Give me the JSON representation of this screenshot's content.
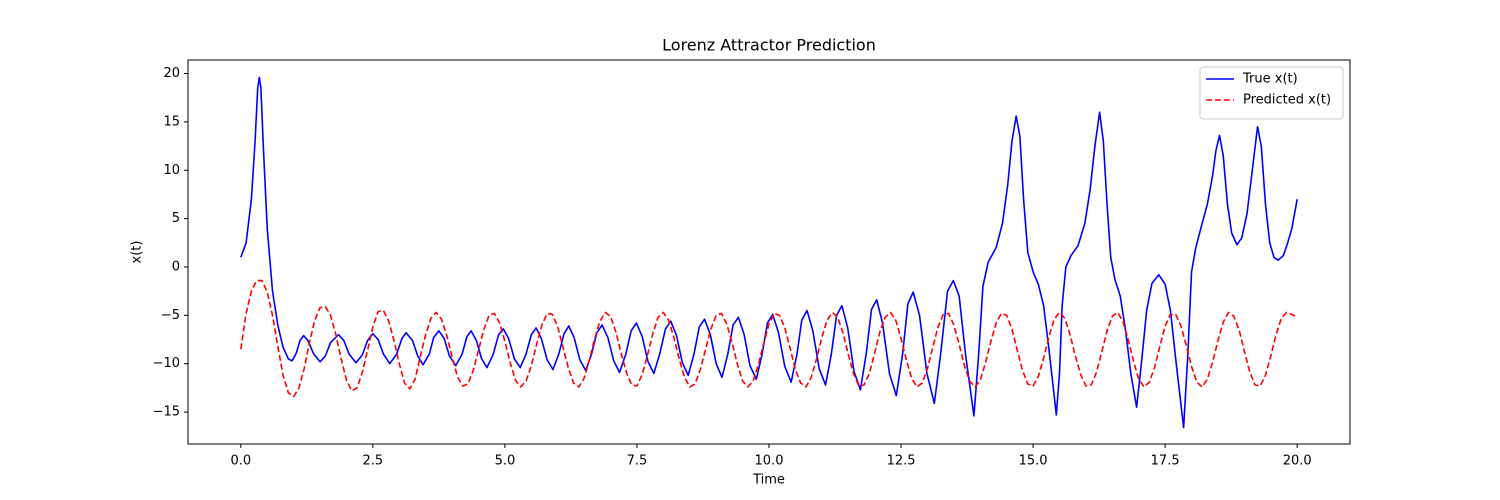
{
  "chart_data": {
    "type": "line",
    "title": "Lorenz Attractor Prediction",
    "x_label": "Time",
    "y_label": "x(t)",
    "xlim": [
      -1,
      21
    ],
    "ylim": [
      -18.3,
      21.4
    ],
    "xticks": [
      {
        "value": 0,
        "label": "0.0"
      },
      2.5,
      {
        "value": 5,
        "label": "5.0"
      },
      7.5,
      {
        "value": 10,
        "label": "10.0"
      },
      12.5,
      {
        "value": 15,
        "label": "15.0"
      },
      17.5,
      {
        "value": 20,
        "label": "20.0"
      }
    ],
    "yticks": [
      {
        "value": -15,
        "label": "−15"
      },
      {
        "value": -10,
        "label": "−10"
      },
      {
        "value": -5,
        "label": "−5"
      },
      0,
      5,
      10,
      15,
      20
    ],
    "grid": false,
    "legend": "upper right",
    "series": [
      {
        "name": "True x(t)",
        "color": "#0000ff",
        "linestyle": "solid",
        "x": [
          0,
          0.1,
          0.2,
          0.27,
          0.32,
          0.35,
          0.38,
          0.43,
          0.5,
          0.6,
          0.7,
          0.8,
          0.9,
          0.97,
          1.05,
          1.12,
          1.19,
          1.27,
          1.38,
          1.5,
          1.6,
          1.7,
          1.85,
          1.95,
          2.05,
          2.18,
          2.3,
          2.4,
          2.5,
          2.6,
          2.7,
          2.82,
          2.95,
          3.05,
          3.13,
          3.25,
          3.35,
          3.45,
          3.57,
          3.65,
          3.75,
          3.85,
          3.95,
          4.07,
          4.19,
          4.28,
          4.36,
          4.46,
          4.56,
          4.66,
          4.78,
          4.88,
          4.97,
          5.07,
          5.18,
          5.29,
          5.4,
          5.5,
          5.59,
          5.69,
          5.8,
          5.91,
          6.02,
          6.12,
          6.21,
          6.31,
          6.42,
          6.53,
          6.64,
          6.74,
          6.84,
          6.95,
          7.06,
          7.17,
          7.29,
          7.39,
          7.49,
          7.6,
          7.71,
          7.82,
          7.93,
          8.04,
          8.14,
          8.25,
          8.36,
          8.47,
          8.58,
          8.68,
          8.78,
          8.89,
          9.0,
          9.11,
          9.22,
          9.32,
          9.42,
          9.53,
          9.64,
          9.76,
          9.87,
          9.97,
          10.07,
          10.18,
          10.3,
          10.42,
          10.53,
          10.62,
          10.72,
          10.83,
          10.95,
          11.07,
          11.18,
          11.28,
          11.38,
          11.49,
          11.61,
          11.73,
          11.84,
          11.94,
          12.04,
          12.15,
          12.28,
          12.41,
          12.53,
          12.63,
          12.73,
          12.85,
          12.99,
          13.13,
          13.25,
          13.38,
          13.49,
          13.6,
          13.72,
          13.88,
          13.97,
          14.05,
          14.15,
          14.3,
          14.42,
          14.52,
          14.6,
          14.68,
          14.75,
          14.82,
          14.9,
          15.0,
          15.1,
          15.2,
          15.3,
          15.44,
          15.5,
          15.55,
          15.62,
          15.72,
          15.85,
          15.98,
          16.08,
          16.17,
          16.26,
          16.33,
          16.4,
          16.47,
          16.55,
          16.65,
          16.75,
          16.85,
          16.96,
          17.05,
          17.15,
          17.25,
          17.38,
          17.5,
          17.6,
          17.7,
          17.85,
          17.93,
          18.0,
          18.08,
          18.2,
          18.3,
          18.4,
          18.46,
          18.53,
          18.6,
          18.68,
          18.76,
          18.86,
          18.95,
          19.05,
          19.15,
          19.25,
          19.32,
          19.4,
          19.48,
          19.56,
          19.64,
          19.74,
          19.82,
          19.9,
          20.0
        ],
        "values": [
          1.0,
          2.5,
          7,
          13,
          18.5,
          19.6,
          18.5,
          12,
          4,
          -2.5,
          -6,
          -8.3,
          -9.5,
          -9.7,
          -8.9,
          -7.6,
          -7.1,
          -7.6,
          -9.0,
          -9.8,
          -9.2,
          -7.8,
          -7.0,
          -7.6,
          -9.0,
          -9.9,
          -9.1,
          -7.6,
          -6.9,
          -7.5,
          -9.0,
          -10.0,
          -9.0,
          -7.4,
          -6.8,
          -7.6,
          -9.2,
          -10.1,
          -9.0,
          -7.3,
          -6.6,
          -7.4,
          -9.2,
          -10.2,
          -9.0,
          -7.2,
          -6.6,
          -7.6,
          -9.5,
          -10.4,
          -9.0,
          -7.0,
          -6.4,
          -7.4,
          -9.5,
          -10.4,
          -9.0,
          -7.0,
          -6.3,
          -7.4,
          -9.6,
          -10.6,
          -9.0,
          -6.9,
          -6.1,
          -7.3,
          -9.6,
          -10.7,
          -9.0,
          -6.8,
          -6.0,
          -7.3,
          -9.7,
          -10.9,
          -9.0,
          -6.6,
          -5.8,
          -7.2,
          -9.8,
          -11.0,
          -9.0,
          -6.4,
          -5.6,
          -7.1,
          -9.9,
          -11.2,
          -9.0,
          -6.2,
          -5.4,
          -7.0,
          -10.0,
          -11.4,
          -9.0,
          -6.0,
          -5.2,
          -7.0,
          -10.2,
          -11.6,
          -9.0,
          -5.8,
          -4.9,
          -6.8,
          -10.3,
          -11.9,
          -9.0,
          -5.5,
          -4.5,
          -6.6,
          -10.5,
          -12.2,
          -9.0,
          -5.0,
          -4.0,
          -6.3,
          -10.8,
          -12.7,
          -9.0,
          -4.4,
          -3.4,
          -5.8,
          -11.0,
          -13.3,
          -9.0,
          -3.8,
          -2.6,
          -5.0,
          -11.0,
          -14.1,
          -9.0,
          -2.5,
          -1.4,
          -3.0,
          -9.0,
          -15.4,
          -9.0,
          -2.0,
          0.5,
          2.0,
          4.5,
          8.5,
          13.0,
          15.6,
          13.5,
          7.0,
          1.5,
          -0.5,
          -1.8,
          -4.0,
          -8.5,
          -15.3,
          -11.0,
          -4.0,
          0,
          1.2,
          2.2,
          4.5,
          8.0,
          12.5,
          16.0,
          13.0,
          6.5,
          1.0,
          -1.3,
          -3.0,
          -6.5,
          -11.0,
          -14.5,
          -10.0,
          -4.5,
          -1.7,
          -0.8,
          -1.8,
          -4.5,
          -9.5,
          -16.6,
          -9.0,
          -0.5,
          2.0,
          4.5,
          6.5,
          9.5,
          12.0,
          13.6,
          11.5,
          6.5,
          3.5,
          2.3,
          3.0,
          5.5,
          10.0,
          14.5,
          12.5,
          6.5,
          2.5,
          1.0,
          0.7,
          1.2,
          2.5,
          4.0,
          7.0
        ]
      },
      {
        "name": "Predicted x(t)",
        "color": "#ff0000",
        "linestyle": "dashed",
        "x": [
          0,
          0.1,
          0.2,
          0.3,
          0.4,
          0.5,
          0.6,
          0.7,
          0.8,
          0.9,
          1.0,
          1.1,
          1.2,
          1.3,
          1.4,
          1.5,
          1.6,
          1.7,
          1.8,
          1.9,
          2.0,
          2.1,
          2.2,
          2.3,
          2.4,
          2.5,
          2.6,
          2.7,
          2.8,
          2.9,
          3.0,
          3.1,
          3.2,
          3.3,
          3.4,
          3.5,
          3.6,
          3.7,
          3.8,
          3.9,
          4.0,
          4.1,
          4.2,
          4.3,
          4.4,
          4.5,
          4.6,
          4.7,
          4.8,
          4.9,
          5.0,
          5.1,
          5.2,
          5.3,
          5.4,
          5.5,
          5.6,
          5.7,
          5.8,
          5.9,
          6.0,
          6.1,
          6.2,
          6.3,
          6.4,
          6.5,
          6.6,
          6.7,
          6.8,
          6.9,
          7.0,
          7.1,
          7.2,
          7.3,
          7.4,
          7.5,
          7.6,
          7.7,
          7.8,
          7.9,
          8.0,
          8.1,
          8.2,
          8.3,
          8.4,
          8.5,
          8.6,
          8.7,
          8.8,
          8.9,
          9.0,
          9.1,
          9.2,
          9.3,
          9.4,
          9.5,
          9.6,
          9.7,
          9.8,
          9.9,
          10.0,
          10.1,
          10.2,
          10.3,
          10.4,
          10.5,
          10.6,
          10.7,
          10.8,
          10.9,
          11.0,
          11.1,
          11.2,
          11.3,
          11.4,
          11.5,
          11.6,
          11.7,
          11.8,
          11.9,
          12.0,
          12.1,
          12.2,
          12.3,
          12.4,
          12.5,
          12.6,
          12.7,
          12.8,
          12.9,
          13.0,
          13.1,
          13.2,
          13.3,
          13.4,
          13.5,
          13.6,
          13.7,
          13.8,
          13.9,
          14.0,
          14.1,
          14.2,
          14.3,
          14.4,
          14.5,
          14.6,
          14.7,
          14.8,
          14.9,
          15.0,
          15.1,
          15.2,
          15.3,
          15.4,
          15.5,
          15.6,
          15.7,
          15.8,
          15.9,
          16.0,
          16.1,
          16.2,
          16.3,
          16.4,
          16.5,
          16.6,
          16.7,
          16.8,
          16.9,
          17.0,
          17.1,
          17.2,
          17.3,
          17.4,
          17.5,
          17.6,
          17.7,
          17.8,
          17.9,
          18.0,
          18.1,
          18.2,
          18.3,
          18.4,
          18.5,
          18.6,
          18.7,
          18.8,
          18.9,
          19.0,
          19.1,
          19.2,
          19.3,
          19.4,
          19.5,
          19.6,
          19.7,
          19.8,
          19.9,
          20.0
        ],
        "values": [
          -8.5,
          -4.8,
          -2.5,
          -1.4,
          -1.4,
          -2.6,
          -5.0,
          -8.2,
          -11.2,
          -13.0,
          -13.4,
          -12.5,
          -10.5,
          -7.8,
          -5.5,
          -4.2,
          -4.1,
          -5.0,
          -7.0,
          -9.5,
          -11.7,
          -12.8,
          -12.5,
          -10.9,
          -8.6,
          -6.2,
          -4.6,
          -4.5,
          -5.6,
          -7.6,
          -10.0,
          -12.0,
          -12.6,
          -11.6,
          -9.2,
          -7.0,
          -5.3,
          -4.7,
          -5.4,
          -7.1,
          -9.3,
          -11.3,
          -12.3,
          -12.1,
          -10.7,
          -8.6,
          -6.5,
          -5.0,
          -4.8,
          -5.8,
          -7.7,
          -9.9,
          -11.7,
          -12.4,
          -11.8,
          -10.2,
          -8.0,
          -6.0,
          -4.8,
          -4.9,
          -6.2,
          -8.3,
          -10.4,
          -12.0,
          -12.4,
          -11.5,
          -9.6,
          -7.4,
          -5.6,
          -4.7,
          -5.1,
          -6.7,
          -8.9,
          -10.9,
          -12.2,
          -12.3,
          -11.1,
          -9.1,
          -6.9,
          -5.2,
          -4.7,
          -5.5,
          -7.3,
          -9.5,
          -11.4,
          -12.4,
          -12.1,
          -10.6,
          -8.5,
          -6.4,
          -5.0,
          -4.8,
          -5.9,
          -7.8,
          -10.0,
          -11.8,
          -12.4,
          -11.8,
          -10.1,
          -7.9,
          -5.9,
          -4.8,
          -5.0,
          -6.3,
          -8.4,
          -10.6,
          -12.0,
          -12.4,
          -11.4,
          -9.5,
          -7.3,
          -5.5,
          -4.7,
          -5.2,
          -6.8,
          -9.0,
          -11.0,
          -12.3,
          -12.2,
          -11.0,
          -8.9,
          -6.7,
          -5.2,
          -4.7,
          -5.5,
          -7.4,
          -9.6,
          -11.5,
          -12.4,
          -12.0,
          -10.5,
          -8.3,
          -6.2,
          -4.9,
          -4.8,
          -6.0,
          -8.0,
          -10.2,
          -11.8,
          -12.4,
          -11.7,
          -9.9,
          -7.7,
          -5.8,
          -4.8,
          -5.0,
          -6.4,
          -8.6,
          -10.7,
          -12.1,
          -12.3,
          -11.3,
          -9.4,
          -7.2,
          -5.4,
          -4.7,
          -5.3,
          -7.0,
          -9.2,
          -11.1,
          -12.3,
          -12.2,
          -10.9,
          -8.8,
          -6.6,
          -5.1,
          -4.7,
          -5.6,
          -7.5,
          -9.7,
          -11.6,
          -12.4,
          -11.9,
          -10.4,
          -8.2,
          -6.1,
          -4.9,
          -4.9,
          -6.1,
          -8.1,
          -10.3,
          -11.9,
          -12.4,
          -11.6,
          -9.8,
          -7.6,
          -5.7,
          -4.7,
          -5.1,
          -6.5,
          -8.7,
          -10.8,
          -12.2,
          -12.3,
          -11.2,
          -9.2,
          -7.0,
          -5.3,
          -4.7,
          -4.9,
          -5.2
        ]
      }
    ]
  }
}
